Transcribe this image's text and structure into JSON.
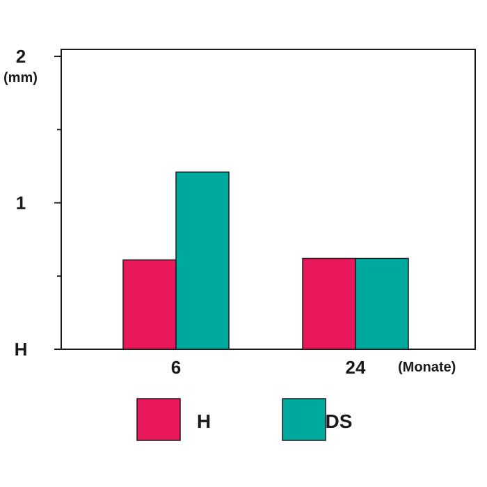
{
  "chart_data": {
    "type": "bar",
    "categories": [
      "6",
      "24"
    ],
    "series": [
      {
        "name": "H",
        "color": "#e8185a",
        "values": [
          0.61,
          0.62
        ]
      },
      {
        "name": "DS",
        "color": "#00a99d",
        "values": [
          1.21,
          0.62
        ]
      }
    ],
    "xlabel": "(Monate)",
    "yunit": "(mm)",
    "ytick_labels": [
      {
        "value": 0,
        "label": "H"
      },
      {
        "value": 1,
        "label": "1"
      },
      {
        "value": 2,
        "label": "2"
      }
    ],
    "yminor_ticks": [
      0.5,
      1.5
    ],
    "ylim": [
      0,
      2
    ],
    "grid": false,
    "legend_position": "bottom"
  }
}
